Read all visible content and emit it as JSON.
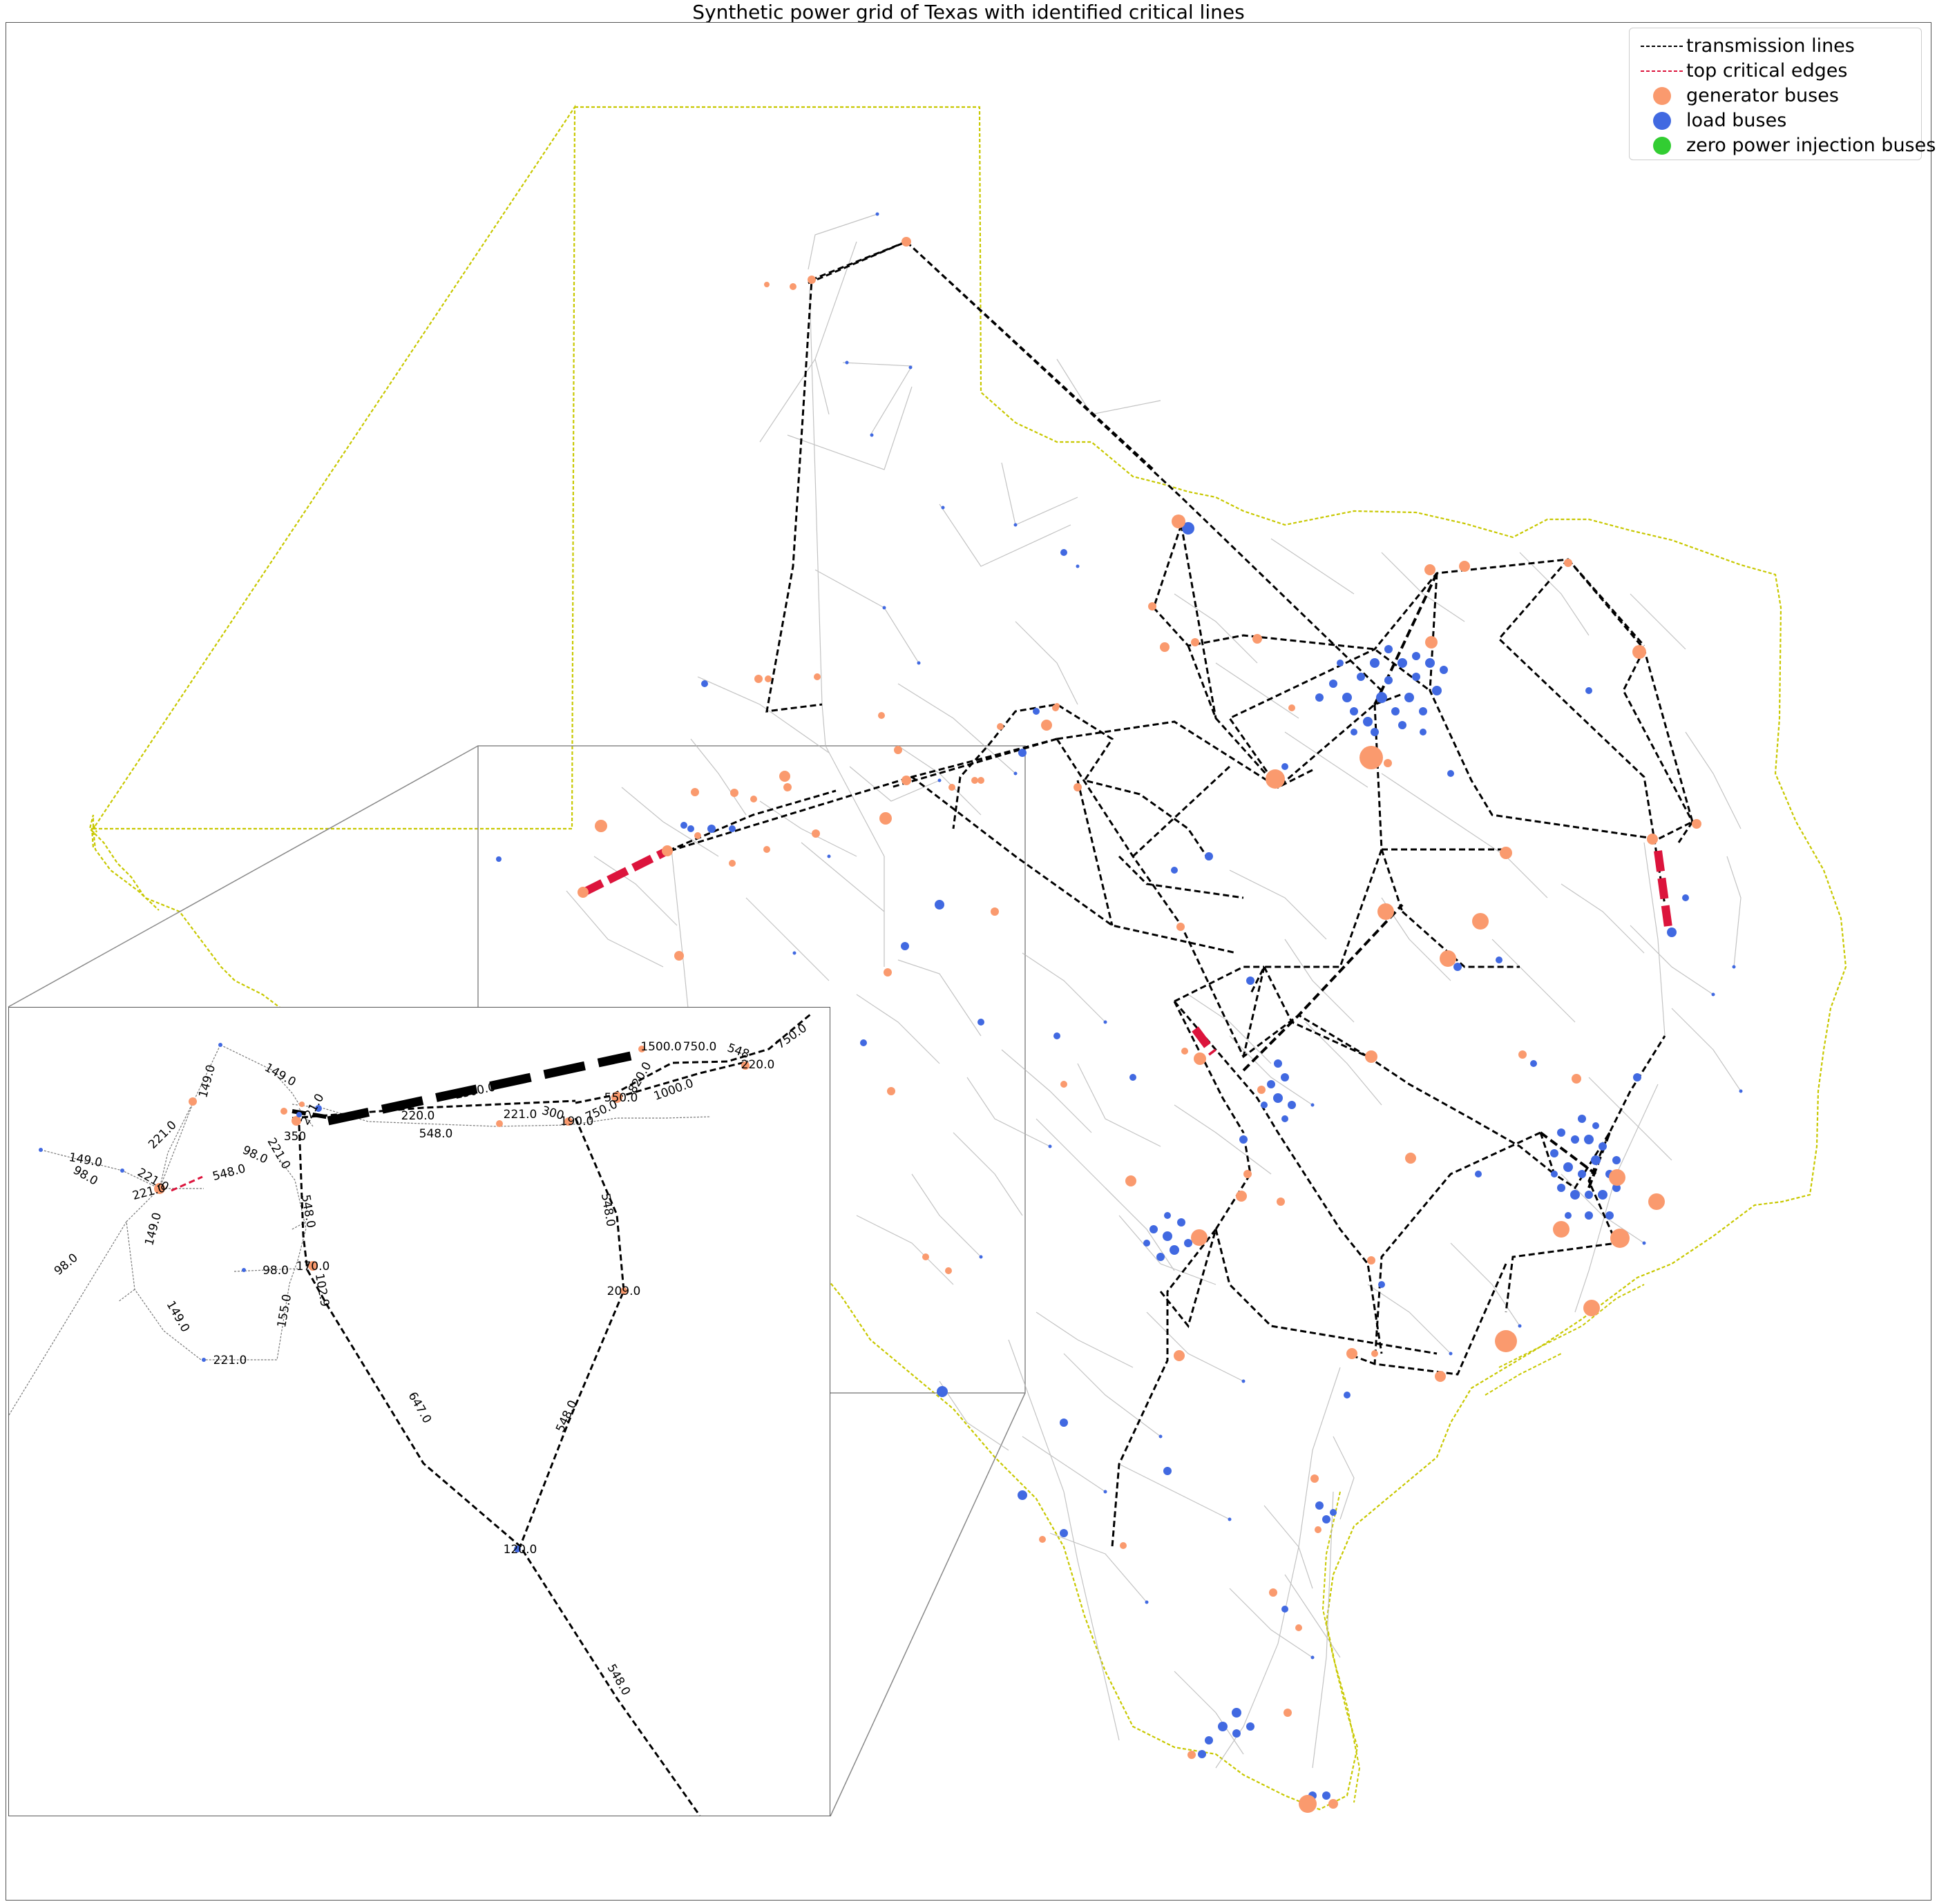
{
  "title": "Synthetic power grid of Texas with identified critical lines",
  "colors": {
    "border": "#c8c800",
    "transmission": "#000000",
    "critical": "#dc143c",
    "generator": "#fa9a6e",
    "load": "#4169e1",
    "zero": "#32cd32",
    "minor_line": "#b4b4b4"
  },
  "legend": {
    "items": [
      {
        "label": "transmission lines",
        "kind": "line",
        "color": "#000000"
      },
      {
        "label": "top critical edges",
        "kind": "line",
        "color": "#dc143c"
      },
      {
        "label": "generator buses",
        "kind": "dot",
        "color": "#fa9a6e"
      },
      {
        "label": "load buses",
        "kind": "dot",
        "color": "#4169e1"
      },
      {
        "label": "zero power injection buses",
        "kind": "dot",
        "color": "#32cd32"
      }
    ]
  },
  "inset": {
    "labels": [
      "149.0",
      "149.0",
      "221.0",
      "221.0",
      "149.0",
      "98.0",
      "221.0",
      "221.0",
      "98.0",
      "149.0",
      "548.0",
      "221.0",
      "98.0",
      "2300.0",
      "220.0",
      "221.0",
      "300",
      "548.0",
      "1500.0",
      "750.0",
      "548",
      "220.0",
      "750.0",
      "820.0",
      "1000.0",
      "550.0",
      "190.0",
      "750.0",
      "548.0",
      "548.0",
      "170.0",
      "98.0",
      "102.9",
      "155.0",
      "149.0",
      "221.0",
      "647.0",
      "548.0",
      "209.0",
      "120.0",
      "548.0",
      "350"
    ]
  }
}
